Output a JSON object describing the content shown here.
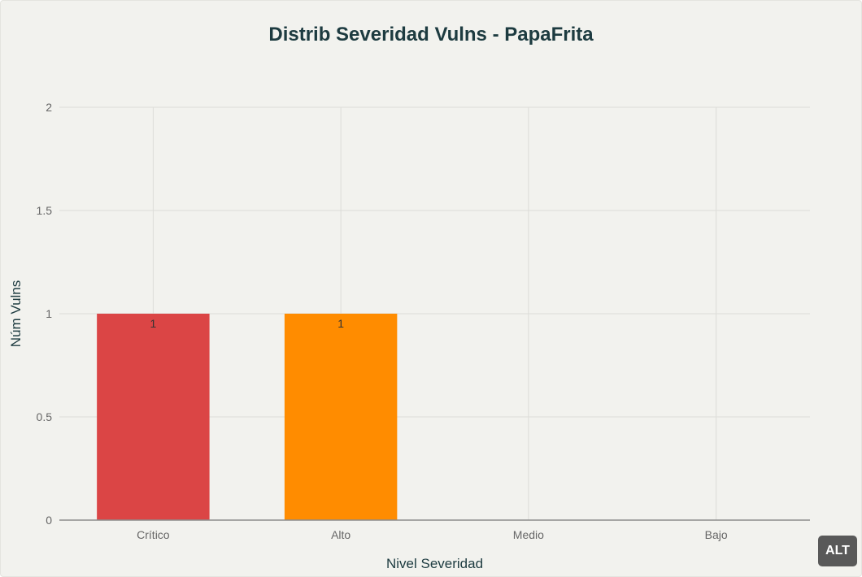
{
  "alt_badge": "ALT",
  "colors": {
    "background": "#f2f2ee",
    "title": "#1d3b40",
    "grid": "#dcdcd8",
    "axis": "#8c8c8c",
    "tick_text": "#666666",
    "axis_title": "#1d3b40",
    "data_label": "#333333"
  },
  "chart_data": {
    "type": "bar",
    "title": "Distrib Severidad Vulns - PapaFrita",
    "xlabel": "Nivel Severidad",
    "ylabel": "Núm Vulns",
    "categories": [
      "Crítico",
      "Alto",
      "Medio",
      "Bajo"
    ],
    "values": [
      1,
      1,
      0,
      0
    ],
    "bar_colors": [
      "#db4545",
      "#ff8c00",
      "#ecebd5",
      "#5d878f"
    ],
    "data_labels": [
      "1",
      "1",
      "",
      ""
    ],
    "ylim": [
      0,
      2
    ],
    "yticks": [
      0,
      0.5,
      1,
      1.5,
      2
    ],
    "ytick_labels": [
      "0",
      "0.5",
      "1",
      "1.5",
      "2"
    ],
    "grid": true,
    "legend": "none"
  }
}
